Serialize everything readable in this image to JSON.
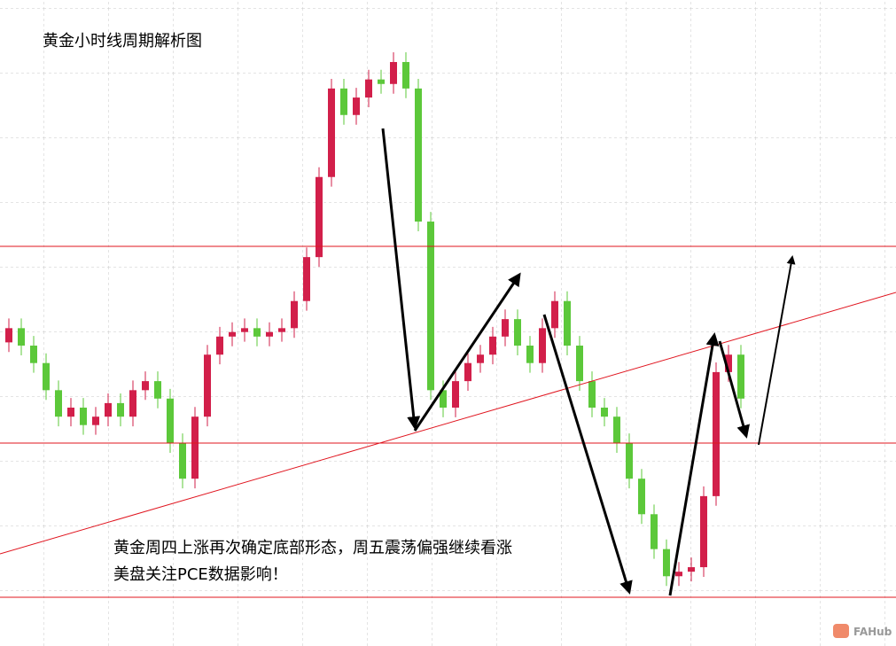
{
  "chart_data": {
    "type": "candlestick",
    "title": "黄金小时线周期解析图",
    "annotations": [
      "黄金周四上涨再次确定底部形态，周五震荡偏强继续看涨",
      "美盘关注PCE数据影响！"
    ],
    "watermark": "FAHub",
    "up_color": "#d21f4a",
    "down_color": "#5cc83a",
    "ylim": [
      0,
      100
    ],
    "open": [
      47.0,
      49.2,
      46.5,
      43.8,
      39.6,
      35.5,
      36.9,
      34.2,
      35.5,
      37.6,
      35.5,
      39.6,
      41.0,
      38.3,
      31.4,
      25.9,
      35.5,
      45.1,
      47.9,
      48.6,
      49.2,
      47.9,
      48.6,
      49.2,
      53.4,
      60.2,
      72.6,
      86.3,
      82.2,
      84.9,
      87.7,
      87.0,
      90.4,
      86.3,
      65.7,
      39.6,
      36.9,
      41.0,
      43.8,
      45.1,
      47.9,
      50.6,
      46.5,
      43.8,
      49.2,
      53.4,
      46.5,
      41.0,
      36.9,
      35.5,
      31.4,
      25.9,
      20.4,
      15.0,
      10.8,
      11.5,
      12.2,
      23.2,
      42.4,
      45.1
    ],
    "high": [
      50.7,
      50.7,
      48.0,
      45.3,
      41.1,
      38.4,
      38.4,
      37.0,
      39.1,
      39.1,
      41.1,
      42.5,
      42.5,
      39.8,
      32.9,
      37.0,
      46.6,
      49.4,
      50.1,
      50.7,
      50.7,
      50.1,
      50.7,
      54.9,
      61.7,
      74.1,
      87.8,
      87.8,
      86.4,
      89.2,
      89.2,
      91.9,
      91.9,
      87.8,
      67.2,
      41.1,
      42.5,
      45.3,
      46.6,
      49.4,
      52.1,
      52.1,
      48.0,
      50.7,
      54.9,
      54.9,
      48.0,
      42.5,
      38.4,
      37.0,
      32.9,
      27.4,
      21.9,
      16.5,
      13.0,
      13.7,
      24.7,
      43.9,
      46.6,
      46.6
    ],
    "low": [
      45.5,
      45.0,
      42.3,
      38.1,
      34.0,
      34.0,
      32.7,
      32.7,
      34.0,
      34.0,
      34.0,
      38.1,
      36.8,
      29.9,
      24.4,
      24.4,
      34.0,
      43.6,
      46.4,
      47.1,
      46.4,
      46.4,
      47.1,
      47.7,
      51.9,
      58.7,
      71.1,
      80.7,
      80.7,
      83.4,
      85.5,
      85.5,
      84.8,
      64.2,
      38.1,
      35.4,
      35.4,
      39.5,
      42.3,
      43.6,
      46.4,
      45.0,
      42.3,
      42.3,
      47.7,
      45.0,
      39.5,
      35.4,
      34.0,
      29.9,
      24.4,
      18.9,
      13.5,
      9.3,
      9.3,
      10.0,
      10.7,
      21.7,
      40.9,
      36.8
    ],
    "close": [
      49.2,
      46.5,
      43.8,
      39.6,
      35.5,
      36.9,
      34.2,
      35.5,
      37.6,
      35.5,
      39.6,
      41.0,
      38.3,
      31.4,
      25.9,
      35.5,
      45.1,
      47.9,
      48.6,
      49.2,
      47.9,
      48.6,
      49.2,
      53.4,
      60.2,
      72.6,
      86.3,
      82.2,
      84.9,
      87.7,
      87.0,
      90.4,
      86.3,
      65.7,
      39.6,
      36.9,
      41.0,
      43.8,
      45.1,
      47.9,
      50.6,
      46.5,
      43.8,
      49.2,
      53.4,
      46.5,
      41.0,
      36.9,
      35.5,
      31.4,
      25.9,
      20.4,
      15.0,
      10.8,
      11.5,
      12.2,
      23.2,
      42.4,
      45.1,
      38.3
    ]
  }
}
